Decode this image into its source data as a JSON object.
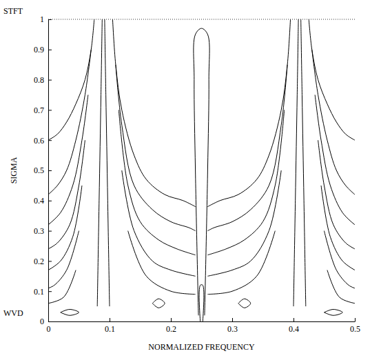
{
  "chart_data": {
    "type": "line",
    "x_label": "NORMALIZED FREQUENCY",
    "y_label": "SIGMA",
    "annotations": [
      {
        "text": "STFT",
        "y": 1
      },
      {
        "text": "WVD",
        "y": 0
      }
    ],
    "xlim": [
      0,
      0.5
    ],
    "ylim": [
      0,
      1
    ],
    "xticks": [
      0,
      0.1,
      0.2,
      0.3,
      0.4,
      0.5
    ],
    "yticks": [
      0,
      0.1,
      0.2,
      0.3,
      0.4,
      0.5,
      0.6,
      0.7,
      0.8,
      0.9,
      1
    ],
    "color": "#000000",
    "line_style": "solid",
    "grid": false,
    "series": [
      {
        "x": [
          0.075,
          0.07,
          0.06,
          0.045,
          0.03,
          0.015,
          0
        ],
        "values": [
          1,
          0.9,
          0.8,
          0.72,
          0.66,
          0.62,
          0.6
        ]
      },
      {
        "x": [
          0.07,
          0.06,
          0.045,
          0.03,
          0.015,
          0
        ],
        "values": [
          0.9,
          0.75,
          0.6,
          0.5,
          0.45,
          0.42
        ]
      },
      {
        "x": [
          0.065,
          0.055,
          0.04,
          0.02,
          0
        ],
        "values": [
          0.75,
          0.6,
          0.45,
          0.36,
          0.32
        ]
      },
      {
        "x": [
          0.06,
          0.05,
          0.035,
          0.015,
          0
        ],
        "values": [
          0.6,
          0.45,
          0.32,
          0.26,
          0.24
        ]
      },
      {
        "x": [
          0.055,
          0.04,
          0.02,
          0
        ],
        "values": [
          0.45,
          0.28,
          0.2,
          0.17
        ]
      },
      {
        "x": [
          0.05,
          0.03,
          0.01,
          0
        ],
        "values": [
          0.3,
          0.17,
          0.12,
          0.11
        ]
      },
      {
        "x": [
          0.045,
          0.025,
          0
        ],
        "values": [
          0.17,
          0.08,
          0.06
        ]
      },
      {
        "x": [
          0.425,
          0.43,
          0.44,
          0.455,
          0.47,
          0.485,
          0.5
        ],
        "values": [
          1,
          0.9,
          0.8,
          0.72,
          0.66,
          0.62,
          0.6
        ]
      },
      {
        "x": [
          0.43,
          0.44,
          0.455,
          0.47,
          0.485,
          0.5
        ],
        "values": [
          0.9,
          0.75,
          0.6,
          0.5,
          0.45,
          0.42
        ]
      },
      {
        "x": [
          0.435,
          0.445,
          0.46,
          0.48,
          0.5
        ],
        "values": [
          0.75,
          0.6,
          0.45,
          0.36,
          0.32
        ]
      },
      {
        "x": [
          0.44,
          0.45,
          0.465,
          0.485,
          0.5
        ],
        "values": [
          0.6,
          0.45,
          0.32,
          0.26,
          0.24
        ]
      },
      {
        "x": [
          0.445,
          0.46,
          0.48,
          0.5
        ],
        "values": [
          0.45,
          0.28,
          0.2,
          0.17
        ]
      },
      {
        "x": [
          0.45,
          0.47,
          0.49,
          0.5
        ],
        "values": [
          0.3,
          0.17,
          0.12,
          0.11
        ]
      },
      {
        "x": [
          0.455,
          0.475,
          0.5
        ],
        "values": [
          0.17,
          0.08,
          0.06
        ]
      },
      {
        "x": [
          0.105,
          0.11,
          0.12,
          0.14,
          0.16,
          0.19,
          0.22,
          0.24
        ],
        "values": [
          1,
          0.85,
          0.7,
          0.55,
          0.47,
          0.42,
          0.4,
          0.38
        ]
      },
      {
        "x": [
          0.11,
          0.12,
          0.14,
          0.17,
          0.2,
          0.23,
          0.24
        ],
        "values": [
          0.85,
          0.65,
          0.45,
          0.37,
          0.33,
          0.31,
          0.3
        ]
      },
      {
        "x": [
          0.115,
          0.13,
          0.15,
          0.18,
          0.21,
          0.24
        ],
        "values": [
          0.7,
          0.45,
          0.33,
          0.27,
          0.24,
          0.22
        ]
      },
      {
        "x": [
          0.12,
          0.14,
          0.17,
          0.2,
          0.24
        ],
        "values": [
          0.5,
          0.3,
          0.2,
          0.17,
          0.15
        ]
      },
      {
        "x": [
          0.13,
          0.16,
          0.2,
          0.24
        ],
        "values": [
          0.3,
          0.15,
          0.1,
          0.09
        ]
      },
      {
        "x": [
          0.395,
          0.39,
          0.38,
          0.36,
          0.34,
          0.31,
          0.28,
          0.26
        ],
        "values": [
          1,
          0.85,
          0.7,
          0.55,
          0.47,
          0.42,
          0.4,
          0.38
        ]
      },
      {
        "x": [
          0.39,
          0.38,
          0.36,
          0.33,
          0.3,
          0.27,
          0.26
        ],
        "values": [
          0.85,
          0.65,
          0.45,
          0.37,
          0.33,
          0.31,
          0.3
        ]
      },
      {
        "x": [
          0.385,
          0.37,
          0.35,
          0.32,
          0.29,
          0.26
        ],
        "values": [
          0.7,
          0.45,
          0.33,
          0.27,
          0.24,
          0.22
        ]
      },
      {
        "x": [
          0.38,
          0.36,
          0.33,
          0.3,
          0.26
        ],
        "values": [
          0.5,
          0.3,
          0.2,
          0.17,
          0.15
        ]
      },
      {
        "x": [
          0.37,
          0.34,
          0.3,
          0.26
        ],
        "values": [
          0.3,
          0.15,
          0.1,
          0.09
        ]
      },
      {
        "x": [
          0.08,
          0.083,
          0.086,
          0.088
        ],
        "values": [
          0.05,
          0.4,
          0.75,
          1
        ]
      },
      {
        "x": [
          0.1,
          0.097,
          0.094,
          0.092
        ],
        "values": [
          0.05,
          0.4,
          0.75,
          1
        ]
      },
      {
        "x": [
          0.42,
          0.417,
          0.414,
          0.412
        ],
        "values": [
          0.05,
          0.4,
          0.75,
          1
        ]
      },
      {
        "x": [
          0.4,
          0.403,
          0.406,
          0.408
        ],
        "values": [
          0.05,
          0.4,
          0.75,
          1
        ]
      },
      {
        "x": [
          0.245,
          0.24,
          0.238,
          0.24,
          0.25,
          0.26,
          0.262,
          0.26,
          0.255
        ],
        "values": [
          0.02,
          0.5,
          0.8,
          0.95,
          0.97,
          0.95,
          0.8,
          0.5,
          0.02
        ]
      },
      {
        "x": [
          0.248,
          0.248,
          0.252,
          0.252
        ],
        "values": [
          0,
          0.12,
          0.12,
          0
        ]
      },
      {
        "x": [
          0.17,
          0.18,
          0.19,
          0.18,
          0.17
        ],
        "values": [
          0.06,
          0.075,
          0.06,
          0.045,
          0.06
        ]
      },
      {
        "x": [
          0.31,
          0.32,
          0.33,
          0.32,
          0.31
        ],
        "values": [
          0.06,
          0.075,
          0.06,
          0.045,
          0.06
        ]
      },
      {
        "x": [
          0.02,
          0.035,
          0.05,
          0.035,
          0.02
        ],
        "values": [
          0.03,
          0.04,
          0.03,
          0.02,
          0.03
        ]
      },
      {
        "x": [
          0.45,
          0.465,
          0.48,
          0.465,
          0.45
        ],
        "values": [
          0.03,
          0.04,
          0.03,
          0.02,
          0.03
        ]
      }
    ]
  }
}
